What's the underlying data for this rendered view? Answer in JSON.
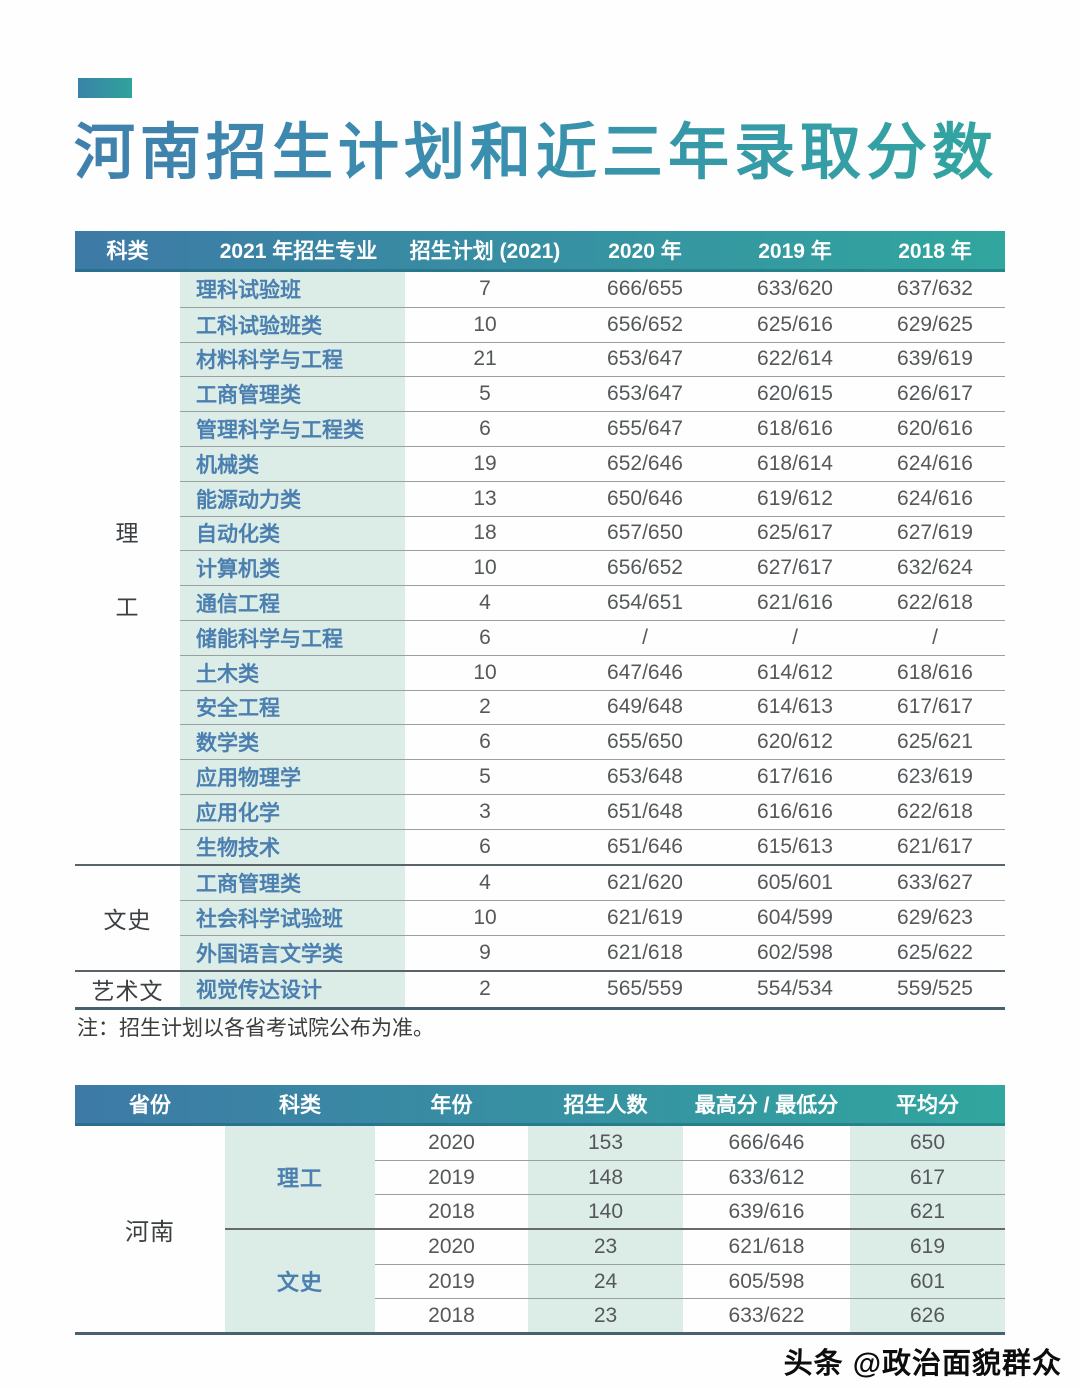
{
  "page": {
    "title": "河南招生计划和近三年录取分数",
    "note": "注：招生计划以各省考试院公布为准。",
    "watermark": "头条 @政治面貌群众"
  },
  "colors": {
    "header_gradient_start": "#3d7aa6",
    "header_gradient_end": "#31a69e",
    "title_gradient_start": "#4080ad",
    "title_gradient_end": "#32a6a0",
    "mint_column": "#dcede8",
    "major_text_blue": "#4b7fb0",
    "value_text_gray": "#55585a"
  },
  "table1": {
    "headers": [
      "科类",
      "2021 年招生专业",
      "招生计划 (2021)",
      "2020 年",
      "2019 年",
      "2018 年"
    ],
    "sections": [
      {
        "category": "理工",
        "category_chars": [
          "理",
          "工"
        ],
        "rows": [
          {
            "major": "理科试验班",
            "plan": "7",
            "y2020": "666/655",
            "y2019": "633/620",
            "y2018": "637/632"
          },
          {
            "major": "工科试验班类",
            "plan": "10",
            "y2020": "656/652",
            "y2019": "625/616",
            "y2018": "629/625"
          },
          {
            "major": "材料科学与工程",
            "plan": "21",
            "y2020": "653/647",
            "y2019": "622/614",
            "y2018": "639/619"
          },
          {
            "major": "工商管理类",
            "plan": "5",
            "y2020": "653/647",
            "y2019": "620/615",
            "y2018": "626/617"
          },
          {
            "major": "管理科学与工程类",
            "plan": "6",
            "y2020": "655/647",
            "y2019": "618/616",
            "y2018": "620/616"
          },
          {
            "major": "机械类",
            "plan": "19",
            "y2020": "652/646",
            "y2019": "618/614",
            "y2018": "624/616"
          },
          {
            "major": "能源动力类",
            "plan": "13",
            "y2020": "650/646",
            "y2019": "619/612",
            "y2018": "624/616"
          },
          {
            "major": "自动化类",
            "plan": "18",
            "y2020": "657/650",
            "y2019": "625/617",
            "y2018": "627/619"
          },
          {
            "major": "计算机类",
            "plan": "10",
            "y2020": "656/652",
            "y2019": "627/617",
            "y2018": "632/624"
          },
          {
            "major": "通信工程",
            "plan": "4",
            "y2020": "654/651",
            "y2019": "621/616",
            "y2018": "622/618"
          },
          {
            "major": "储能科学与工程",
            "plan": "6",
            "y2020": "/",
            "y2019": "/",
            "y2018": "/"
          },
          {
            "major": "土木类",
            "plan": "10",
            "y2020": "647/646",
            "y2019": "614/612",
            "y2018": "618/616"
          },
          {
            "major": "安全工程",
            "plan": "2",
            "y2020": "649/648",
            "y2019": "614/613",
            "y2018": "617/617"
          },
          {
            "major": "数学类",
            "plan": "6",
            "y2020": "655/650",
            "y2019": "620/612",
            "y2018": "625/621"
          },
          {
            "major": "应用物理学",
            "plan": "5",
            "y2020": "653/648",
            "y2019": "617/616",
            "y2018": "623/619"
          },
          {
            "major": "应用化学",
            "plan": "3",
            "y2020": "651/648",
            "y2019": "616/616",
            "y2018": "622/618"
          },
          {
            "major": "生物技术",
            "plan": "6",
            "y2020": "651/646",
            "y2019": "615/613",
            "y2018": "621/617"
          }
        ]
      },
      {
        "category": "文史",
        "rows": [
          {
            "major": "工商管理类",
            "plan": "4",
            "y2020": "621/620",
            "y2019": "605/601",
            "y2018": "633/627"
          },
          {
            "major": "社会科学试验班",
            "plan": "10",
            "y2020": "621/619",
            "y2019": "604/599",
            "y2018": "629/623"
          },
          {
            "major": "外国语言文学类",
            "plan": "9",
            "y2020": "621/618",
            "y2019": "602/598",
            "y2018": "625/622"
          }
        ]
      },
      {
        "category": "艺术文",
        "rows": [
          {
            "major": "视觉传达设计",
            "plan": "2",
            "y2020": "565/559",
            "y2019": "554/534",
            "y2018": "559/525"
          }
        ]
      }
    ]
  },
  "table2": {
    "headers": [
      "省份",
      "科类",
      "年份",
      "招生人数",
      "最高分 / 最低分",
      "平均分"
    ],
    "province": "河南",
    "groups": [
      {
        "category": "理工",
        "rows": [
          {
            "year": "2020",
            "count": "153",
            "scores": "666/646",
            "avg": "650"
          },
          {
            "year": "2019",
            "count": "148",
            "scores": "633/612",
            "avg": "617"
          },
          {
            "year": "2018",
            "count": "140",
            "scores": "639/616",
            "avg": "621"
          }
        ]
      },
      {
        "category": "文史",
        "rows": [
          {
            "year": "2020",
            "count": "23",
            "scores": "621/618",
            "avg": "619"
          },
          {
            "year": "2019",
            "count": "24",
            "scores": "605/598",
            "avg": "601"
          },
          {
            "year": "2018",
            "count": "23",
            "scores": "633/622",
            "avg": "626"
          }
        ]
      }
    ]
  }
}
